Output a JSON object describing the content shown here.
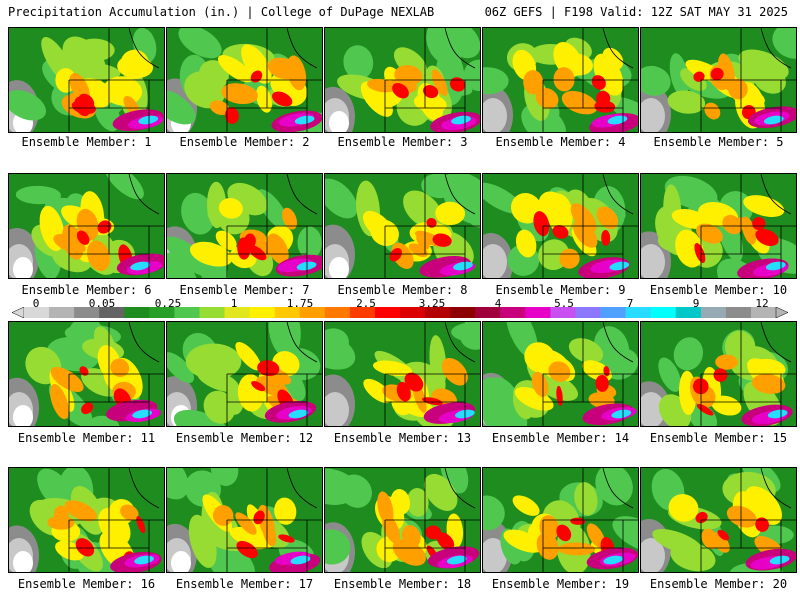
{
  "header": {
    "left": "Precipitation Accumulation (in.) | College of DuPage NEXLAB",
    "right": "06Z GEFS | F198 Valid: 12Z SAT MAY 31 2025"
  },
  "colorbar": {
    "labels": [
      "0",
      "0.05",
      "0.25",
      "1",
      "1.75",
      "2.5",
      "3.25",
      "4",
      "5.5",
      "7",
      "9",
      "12"
    ],
    "colors": [
      "#d8d8d8",
      "#b4b4b4",
      "#8c8c8c",
      "#646464",
      "#1e8c1e",
      "#28a028",
      "#50c850",
      "#96dc32",
      "#e1e61e",
      "#fff000",
      "#ffc800",
      "#ffa000",
      "#ff7800",
      "#ff3c00",
      "#ff0000",
      "#dc0000",
      "#b40000",
      "#8c0000",
      "#a0003c",
      "#c8007c",
      "#e600c8",
      "#c850f0",
      "#8c78ff",
      "#50a0ff",
      "#28dcff",
      "#00ffff",
      "#00c8c8",
      "#96aab4",
      "#8c8c8c",
      "#b4b4b4"
    ]
  },
  "members": [
    {
      "label": "Ensemble Member: 1"
    },
    {
      "label": "Ensemble Member: 2"
    },
    {
      "label": "Ensemble Member: 3"
    },
    {
      "label": "Ensemble Member: 4"
    },
    {
      "label": "Ensemble Member: 5"
    },
    {
      "label": "Ensemble Member: 6"
    },
    {
      "label": "Ensemble Member: 7"
    },
    {
      "label": "Ensemble Member: 8"
    },
    {
      "label": "Ensemble Member: 9"
    },
    {
      "label": "Ensemble Member: 10"
    },
    {
      "label": "Ensemble Member: 11"
    },
    {
      "label": "Ensemble Member: 12"
    },
    {
      "label": "Ensemble Member: 13"
    },
    {
      "label": "Ensemble Member: 14"
    },
    {
      "label": "Ensemble Member: 15"
    },
    {
      "label": "Ensemble Member: 16"
    },
    {
      "label": "Ensemble Member: 17"
    },
    {
      "label": "Ensemble Member: 18"
    },
    {
      "label": "Ensemble Member: 19"
    },
    {
      "label": "Ensemble Member: 20"
    }
  ]
}
